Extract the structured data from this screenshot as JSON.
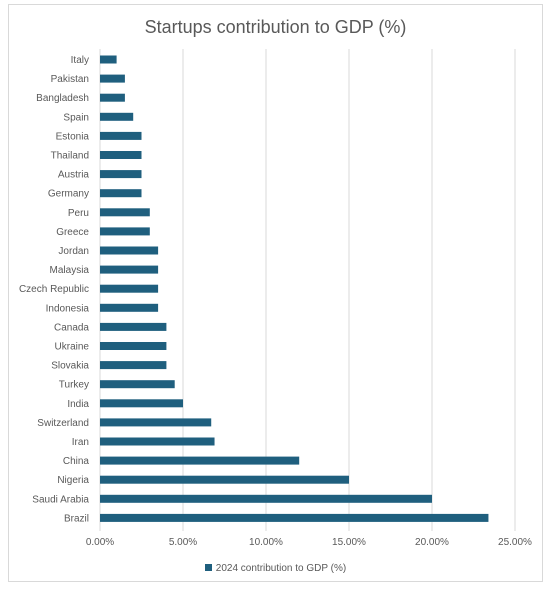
{
  "chart_data": {
    "type": "bar",
    "orientation": "horizontal",
    "title": "Startups contribution to GDP (%)",
    "xlabel": "",
    "ylabel": "",
    "categories": [
      "Italy",
      "Pakistan",
      "Bangladesh",
      "Spain",
      "Estonia",
      "Thailand",
      "Austria",
      "Germany",
      "Peru",
      "Greece",
      "Jordan",
      "Malaysia",
      "Czech Republic",
      "Indonesia",
      "Canada",
      "Ukraine",
      "Slovakia",
      "Turkey",
      "India",
      "Switzerland",
      "Iran",
      "China",
      "Nigeria",
      "Saudi Arabia",
      "Brazil"
    ],
    "series": [
      {
        "name": "2024 contribution to GDP (%)",
        "values": [
          0.01,
          0.015,
          0.015,
          0.02,
          0.025,
          0.025,
          0.025,
          0.025,
          0.03,
          0.03,
          0.035,
          0.035,
          0.035,
          0.035,
          0.04,
          0.04,
          0.04,
          0.045,
          0.05,
          0.067,
          0.069,
          0.12,
          0.15,
          0.2,
          0.234
        ]
      }
    ],
    "xlim": [
      0,
      0.25
    ],
    "xticks": [
      0,
      0.05,
      0.1,
      0.15,
      0.2,
      0.25
    ],
    "xtick_labels": [
      "0.00%",
      "5.00%",
      "10.00%",
      "15.00%",
      "20.00%",
      "25.00%"
    ],
    "grid": "vertical major gridlines",
    "legend_position": "bottom",
    "colors": {
      "bar": "#1f5f7e",
      "grid": "#d9d9d9",
      "text": "#595959",
      "frame": "#d9d9d9"
    }
  }
}
